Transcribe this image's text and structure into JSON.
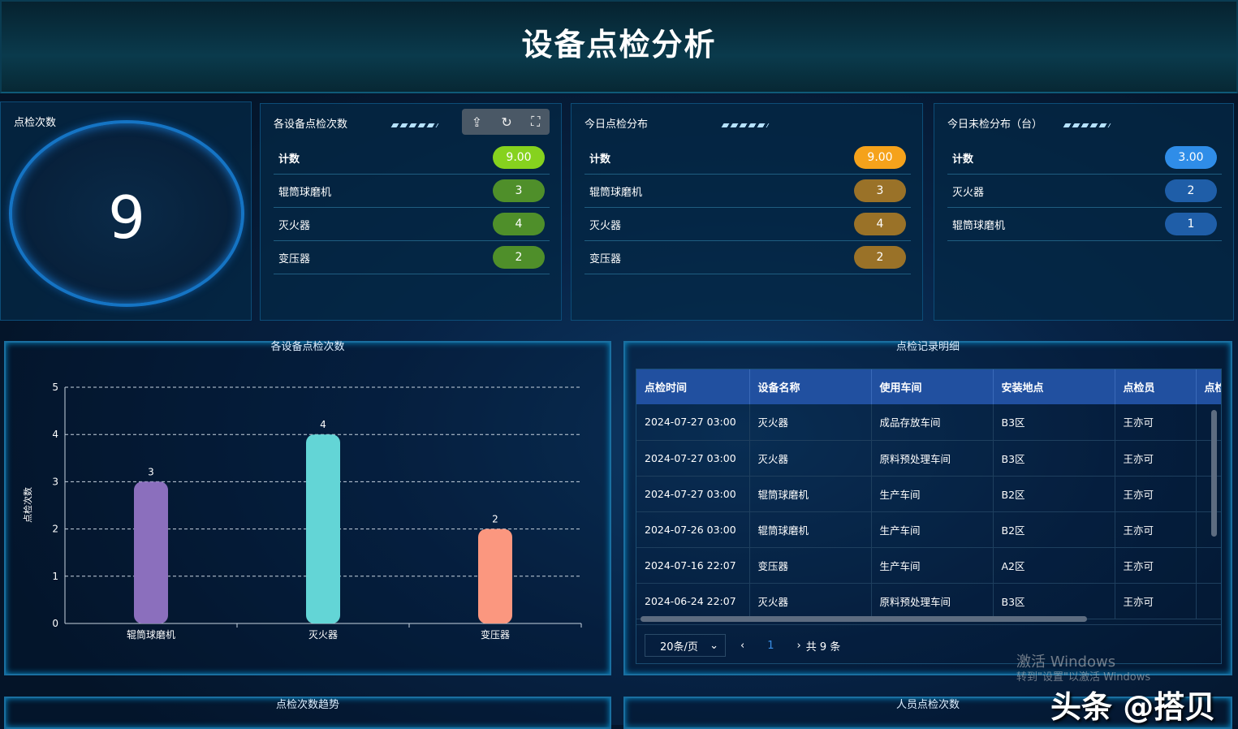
{
  "title": "设备点检分析",
  "total_panel": {
    "title": "点检次数",
    "value": "9"
  },
  "device_counts": {
    "title": "各设备点检次数",
    "tools": [
      "export-icon",
      "refresh-icon",
      "fullscreen-icon"
    ],
    "pill_color": "#4f8f2a",
    "total_color": "#86d21e",
    "rows": [
      {
        "label": "计数",
        "value": "9.00"
      },
      {
        "label": "辊筒球磨机",
        "value": "3"
      },
      {
        "label": "灭火器",
        "value": "4"
      },
      {
        "label": "变压器",
        "value": "2"
      }
    ]
  },
  "today_dist": {
    "title": "今日点检分布",
    "pill_color": "#9a7228",
    "total_color": "#f5a21b",
    "rows": [
      {
        "label": "计数",
        "value": "9.00"
      },
      {
        "label": "辊筒球磨机",
        "value": "3"
      },
      {
        "label": "灭火器",
        "value": "4"
      },
      {
        "label": "变压器",
        "value": "2"
      }
    ]
  },
  "today_unchecked": {
    "title": "今日未检分布（台）",
    "pill_color": "#1f5ea8",
    "total_color": "#2f8de8",
    "rows": [
      {
        "label": "计数",
        "value": "3.00"
      },
      {
        "label": "灭火器",
        "value": "2"
      },
      {
        "label": "辊筒球磨机",
        "value": "1"
      }
    ]
  },
  "chart_data": {
    "type": "bar",
    "title": "各设备点检次数",
    "ylabel": "点检次数",
    "categories": [
      "辊筒球磨机",
      "灭火器",
      "变压器"
    ],
    "values": [
      3,
      4,
      2
    ],
    "ylim": [
      0,
      5
    ],
    "yticks": [
      0,
      1,
      2,
      3,
      4,
      5
    ],
    "grid": true,
    "colors": [
      "#8b6fbd",
      "#63d5d6",
      "#fb977f"
    ]
  },
  "records": {
    "title": "点检记录明细",
    "columns": [
      "点检时间",
      "设备名称",
      "使用车间",
      "安装地点",
      "点检员",
      "点检"
    ],
    "rows": [
      [
        "2024-07-27 03:00",
        "灭火器",
        "成品存放车间",
        "B3区",
        "王亦可",
        ""
      ],
      [
        "2024-07-27 03:00",
        "灭火器",
        "原料预处理车间",
        "B3区",
        "王亦可",
        ""
      ],
      [
        "2024-07-27 03:00",
        "辊筒球磨机",
        "生产车间",
        "B2区",
        "王亦可",
        ""
      ],
      [
        "2024-07-26 03:00",
        "辊筒球磨机",
        "生产车间",
        "B2区",
        "王亦可",
        ""
      ],
      [
        "2024-07-16 22:07",
        "变压器",
        "生产车间",
        "A2区",
        "王亦可",
        ""
      ],
      [
        "2024-06-24 22:07",
        "灭火器",
        "原料预处理车间",
        "B3区",
        "王亦可",
        ""
      ]
    ],
    "page_size": "20条/页",
    "page": "1",
    "total": "共 9 条"
  },
  "bottom": {
    "trend_title": "点检次数趋势",
    "staff_title": "人员点检次数"
  },
  "watermark": {
    "line1": "激活 Windows",
    "line2": "转到\"设置\"以激活 Windows",
    "brand": "头条 @搭贝"
  }
}
